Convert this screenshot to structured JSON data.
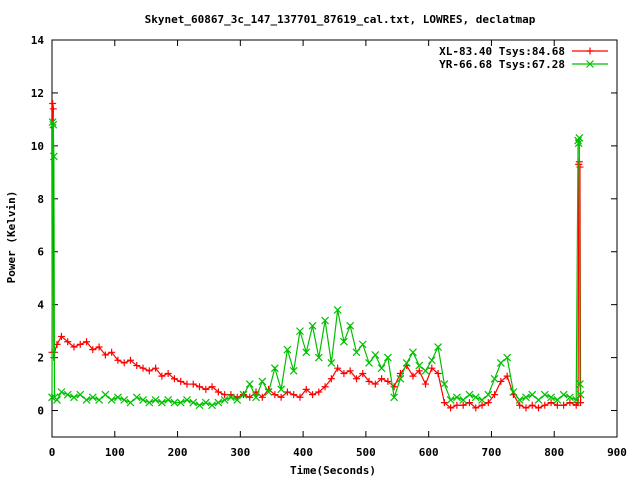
{
  "chart_data": {
    "type": "line",
    "title": "Skynet_60867_3c_147_137701_87619_cal.txt, LOWRES, declatmap",
    "xlabel": "Time(Seconds)",
    "ylabel": "Power (Kelvin)",
    "xlim": [
      0,
      900
    ],
    "ylim": [
      -1,
      14
    ],
    "xticks": [
      "0",
      "100",
      "200",
      "300",
      "400",
      "500",
      "600",
      "700",
      "800",
      "900"
    ],
    "yticks": [
      "0",
      "2",
      "4",
      "6",
      "8",
      "10",
      "12",
      "14"
    ],
    "grid": false,
    "legend_position": "top-right",
    "series": [
      {
        "name": "XL-83.40 Tsys:84.68",
        "color": "#ff0000",
        "marker": "plus",
        "x": [
          0,
          1,
          2,
          3,
          4,
          8,
          15,
          25,
          35,
          45,
          55,
          65,
          75,
          85,
          95,
          105,
          115,
          125,
          135,
          145,
          155,
          165,
          175,
          185,
          195,
          205,
          215,
          225,
          235,
          245,
          255,
          265,
          275,
          285,
          295,
          305,
          315,
          325,
          335,
          345,
          355,
          365,
          375,
          385,
          395,
          405,
          415,
          425,
          435,
          445,
          455,
          465,
          475,
          485,
          495,
          505,
          515,
          525,
          535,
          545,
          555,
          565,
          575,
          585,
          595,
          605,
          615,
          625,
          635,
          645,
          655,
          665,
          675,
          685,
          695,
          705,
          715,
          725,
          735,
          745,
          755,
          765,
          775,
          785,
          795,
          805,
          815,
          825,
          835,
          838,
          839,
          840,
          841,
          842
        ],
        "y": [
          2.2,
          11.6,
          11.4,
          2.0,
          2.2,
          2.5,
          2.8,
          2.6,
          2.4,
          2.5,
          2.6,
          2.3,
          2.4,
          2.1,
          2.2,
          1.9,
          1.8,
          1.9,
          1.7,
          1.6,
          1.5,
          1.6,
          1.3,
          1.4,
          1.2,
          1.1,
          1.0,
          1.0,
          0.9,
          0.8,
          0.9,
          0.7,
          0.6,
          0.6,
          0.5,
          0.6,
          0.5,
          0.7,
          0.5,
          0.8,
          0.6,
          0.5,
          0.7,
          0.6,
          0.5,
          0.8,
          0.6,
          0.7,
          0.9,
          1.2,
          1.6,
          1.4,
          1.5,
          1.2,
          1.4,
          1.1,
          1.0,
          1.2,
          1.1,
          0.9,
          1.4,
          1.7,
          1.3,
          1.5,
          1.0,
          1.6,
          1.4,
          0.3,
          0.1,
          0.2,
          0.2,
          0.3,
          0.1,
          0.2,
          0.3,
          0.6,
          1.1,
          1.3,
          0.6,
          0.2,
          0.1,
          0.2,
          0.1,
          0.2,
          0.3,
          0.2,
          0.2,
          0.3,
          0.2,
          0.3,
          9.3,
          9.4,
          9.2,
          0.3
        ]
      },
      {
        "name": "YR-66.68 Tsys:67.28",
        "color": "#00c000",
        "marker": "cross",
        "x": [
          0,
          1,
          2,
          3,
          4,
          8,
          15,
          25,
          35,
          45,
          55,
          65,
          75,
          85,
          95,
          105,
          115,
          125,
          135,
          145,
          155,
          165,
          175,
          185,
          195,
          205,
          215,
          225,
          235,
          245,
          255,
          265,
          275,
          285,
          295,
          305,
          315,
          325,
          335,
          345,
          355,
          365,
          375,
          385,
          395,
          405,
          415,
          425,
          435,
          445,
          455,
          465,
          475,
          485,
          495,
          505,
          515,
          525,
          535,
          545,
          555,
          565,
          575,
          585,
          595,
          605,
          615,
          625,
          635,
          645,
          655,
          665,
          675,
          685,
          695,
          705,
          715,
          725,
          735,
          745,
          755,
          765,
          775,
          785,
          795,
          805,
          815,
          825,
          835,
          838,
          839,
          840,
          841,
          842
        ],
        "y": [
          0.5,
          10.9,
          10.8,
          9.6,
          0.5,
          0.4,
          0.7,
          0.6,
          0.5,
          0.6,
          0.4,
          0.5,
          0.4,
          0.6,
          0.4,
          0.5,
          0.4,
          0.3,
          0.5,
          0.4,
          0.3,
          0.4,
          0.3,
          0.4,
          0.3,
          0.3,
          0.4,
          0.3,
          0.2,
          0.3,
          0.2,
          0.3,
          0.4,
          0.5,
          0.4,
          0.6,
          1.0,
          0.5,
          1.1,
          0.7,
          1.6,
          0.8,
          2.3,
          1.5,
          3.0,
          2.2,
          3.2,
          2.0,
          3.4,
          1.8,
          3.8,
          2.6,
          3.2,
          2.2,
          2.5,
          1.8,
          2.1,
          1.6,
          2.0,
          0.5,
          1.2,
          1.8,
          2.2,
          1.7,
          1.5,
          1.9,
          2.4,
          1.0,
          0.4,
          0.5,
          0.4,
          0.6,
          0.5,
          0.4,
          0.6,
          1.2,
          1.8,
          2.0,
          0.7,
          0.4,
          0.5,
          0.6,
          0.4,
          0.6,
          0.5,
          0.4,
          0.6,
          0.5,
          0.4,
          10.2,
          10.1,
          10.3,
          1.0,
          0.6
        ]
      }
    ]
  }
}
